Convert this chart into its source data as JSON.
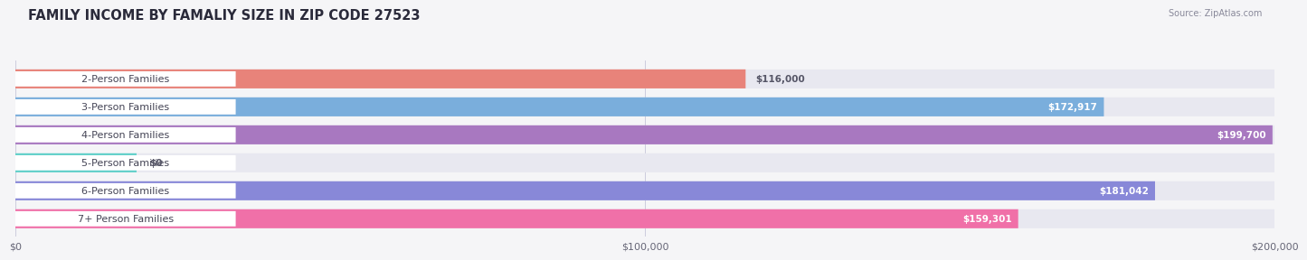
{
  "title": "FAMILY INCOME BY FAMALIY SIZE IN ZIP CODE 27523",
  "source": "Source: ZipAtlas.com",
  "categories": [
    "2-Person Families",
    "3-Person Families",
    "4-Person Families",
    "5-Person Families",
    "6-Person Families",
    "7+ Person Families"
  ],
  "values": [
    116000,
    172917,
    199700,
    0,
    181042,
    159301
  ],
  "bar_colors": [
    "#E8837A",
    "#7AAEDC",
    "#A878C0",
    "#5ECFC8",
    "#8888D8",
    "#F070A8"
  ],
  "value_labels": [
    "$116,000",
    "$172,917",
    "$199,700",
    "$0",
    "$181,042",
    "$159,301"
  ],
  "xmax": 200000,
  "xticks": [
    0,
    100000,
    200000
  ],
  "xtick_labels": [
    "$0",
    "$100,000",
    "$200,000"
  ],
  "background_color": "#f5f5f7",
  "bar_bg_color": "#e8e8f0",
  "title_fontsize": 10.5,
  "label_fontsize": 8.0,
  "value_fontsize": 7.5
}
